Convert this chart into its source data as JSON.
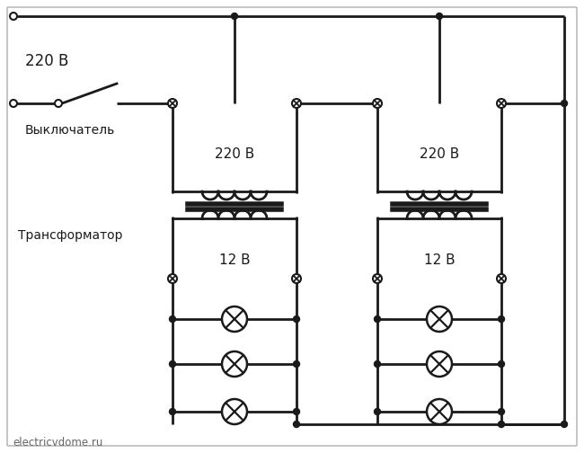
{
  "bg_color": "#ffffff",
  "line_color": "#1a1a1a",
  "text_color": "#1a1a1a",
  "watermark": "electricvdome.ru",
  "label_220V": "220 В",
  "label_switch": "Выключатель",
  "label_transformer": "Трансформатор",
  "label_220_coil": "220 В",
  "label_12_coil": "12 В",
  "figsize": [
    6.5,
    5.04
  ],
  "dpi": 100
}
